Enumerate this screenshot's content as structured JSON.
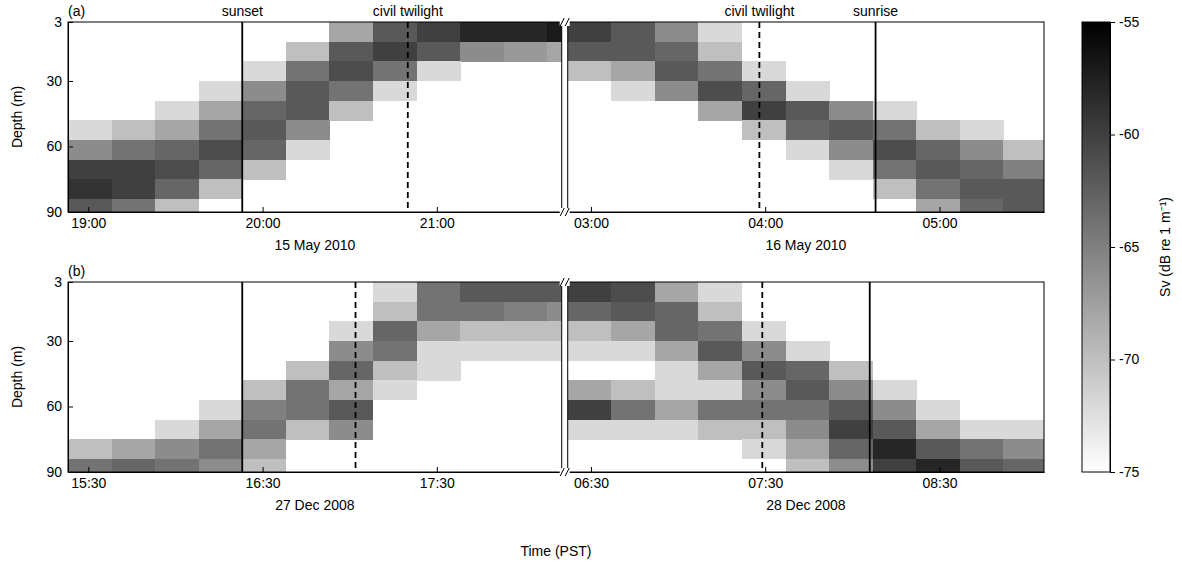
{
  "chart_data": {
    "type": "heatmap",
    "x_label": "Time (PST)",
    "y_label": "Depth (m)",
    "ylim": [
      3,
      90
    ],
    "yticks": [
      3,
      30,
      60,
      90
    ],
    "depth_edges": [
      3,
      12,
      21,
      30,
      39,
      48,
      57,
      66,
      75,
      84,
      90
    ],
    "colorbar": {
      "label": "Sv (dB re 1 m⁻¹)",
      "range": [
        -75,
        -55
      ],
      "ticks": [
        -55,
        -60,
        -65,
        -70,
        -75
      ],
      "colors": [
        "#ffffff",
        "#000000"
      ]
    },
    "panels": [
      {
        "letter": "(a)",
        "halves": [
          {
            "date": "15 May 2010",
            "xlim": [
              1133,
              1303
            ],
            "xticks": [
              {
                "value": 1140,
                "label": "19:00"
              },
              {
                "value": 1200,
                "label": "20:00"
              },
              {
                "value": 1260,
                "label": "21:00"
              }
            ],
            "time_edges": [
              1133,
              1148,
              1163,
              1178,
              1193,
              1208,
              1223,
              1238,
              1253,
              1268,
              1283,
              1298,
              1303
            ],
            "cells": [
              [
                null,
                null,
                null,
                null,
                null,
                null,
                -68,
                -62,
                -60,
                -58,
                -58,
                -57
              ],
              [
                null,
                null,
                null,
                null,
                null,
                -70,
                -62,
                -60,
                -62,
                -66,
                -67,
                -68
              ],
              [
                null,
                null,
                null,
                null,
                -72,
                -64,
                -61,
                -64,
                -72,
                null,
                null,
                null
              ],
              [
                null,
                null,
                null,
                -72,
                -66,
                -62,
                -64,
                -72,
                null,
                null,
                null,
                null
              ],
              [
                null,
                null,
                -72,
                -68,
                -63,
                -62,
                -70,
                null,
                null,
                null,
                null,
                null
              ],
              [
                -72,
                -70,
                -68,
                -64,
                -62,
                -66,
                null,
                null,
                null,
                null,
                null,
                null
              ],
              [
                -66,
                -64,
                -63,
                -61,
                -63,
                -72,
                null,
                null,
                null,
                null,
                null,
                null
              ],
              [
                -60,
                -60,
                -61,
                -63,
                -70,
                null,
                null,
                null,
                null,
                null,
                null,
                null
              ],
              [
                -59,
                -60,
                -63,
                -70,
                null,
                null,
                null,
                null,
                null,
                null,
                null,
                null
              ],
              [
                -62,
                -64,
                -70,
                null,
                null,
                null,
                null,
                null,
                null,
                null,
                null,
                null
              ]
            ],
            "events": [
              {
                "time": 1193,
                "label": "sunset",
                "line_style": "solid"
              },
              {
                "time": 1250,
                "label": "civil twilight",
                "line_style": "dashed"
              }
            ]
          },
          {
            "date": "16 May 2010",
            "xlim": [
              172,
              336
            ],
            "xticks": [
              {
                "value": 180,
                "label": "03:00"
              },
              {
                "value": 240,
                "label": "04:00"
              },
              {
                "value": 300,
                "label": "05:00"
              }
            ],
            "time_edges": [
              172,
              187,
              202,
              217,
              232,
              247,
              262,
              277,
              292,
              307,
              322,
              336
            ],
            "cells": [
              [
                -60,
                -62,
                -66,
                -72,
                null,
                null,
                null,
                null,
                null,
                null,
                null
              ],
              [
                -62,
                -62,
                -63,
                -70,
                null,
                null,
                null,
                null,
                null,
                null,
                null
              ],
              [
                -70,
                -68,
                -62,
                -64,
                -72,
                null,
                null,
                null,
                null,
                null,
                null
              ],
              [
                null,
                -72,
                -66,
                -61,
                -63,
                -72,
                null,
                null,
                null,
                null,
                null
              ],
              [
                null,
                null,
                null,
                -68,
                -60,
                -62,
                -66,
                -72,
                null,
                null,
                null
              ],
              [
                null,
                null,
                null,
                null,
                -70,
                -63,
                -62,
                -64,
                -70,
                -72,
                null
              ],
              [
                null,
                null,
                null,
                null,
                null,
                -72,
                -66,
                -61,
                -63,
                -66,
                -70
              ],
              [
                null,
                null,
                null,
                null,
                null,
                null,
                -72,
                -64,
                -62,
                -63,
                -65
              ],
              [
                null,
                null,
                null,
                null,
                null,
                null,
                null,
                -70,
                -64,
                -62,
                -62
              ],
              [
                null,
                null,
                null,
                null,
                null,
                null,
                null,
                null,
                -68,
                -63,
                -62
              ]
            ],
            "events": [
              {
                "time": 238,
                "label": "civil twilight",
                "line_style": "dashed"
              },
              {
                "time": 278,
                "label": "sunrise",
                "line_style": "solid"
              }
            ]
          }
        ]
      },
      {
        "letter": "(b)",
        "halves": [
          {
            "date": "27 Dec 2008",
            "xlim": [
              923,
              1093
            ],
            "xticks": [
              {
                "value": 930,
                "label": "15:30"
              },
              {
                "value": 990,
                "label": "16:30"
              },
              {
                "value": 1050,
                "label": "17:30"
              }
            ],
            "time_edges": [
              923,
              938,
              953,
              968,
              983,
              998,
              1013,
              1028,
              1043,
              1058,
              1073,
              1088,
              1093
            ],
            "cells": [
              [
                null,
                null,
                null,
                null,
                null,
                null,
                null,
                -72,
                -64,
                -62,
                -62,
                -62
              ],
              [
                null,
                null,
                null,
                null,
                null,
                null,
                null,
                -70,
                -64,
                -64,
                -65,
                -66
              ],
              [
                null,
                null,
                null,
                null,
                null,
                null,
                -72,
                -63,
                -68,
                -70,
                -70,
                -70
              ],
              [
                null,
                null,
                null,
                null,
                null,
                null,
                -66,
                -64,
                -72,
                -72,
                -72,
                -72
              ],
              [
                null,
                null,
                null,
                null,
                null,
                -70,
                -63,
                -70,
                -72,
                null,
                null,
                null
              ],
              [
                null,
                null,
                null,
                null,
                -70,
                -64,
                -68,
                -72,
                null,
                null,
                null,
                null
              ],
              [
                null,
                null,
                null,
                -72,
                -65,
                -64,
                -62,
                null,
                null,
                null,
                null,
                null
              ],
              [
                null,
                null,
                -72,
                -68,
                -64,
                -70,
                -66,
                null,
                null,
                null,
                null,
                null
              ],
              [
                -70,
                -68,
                -66,
                -64,
                -68,
                null,
                null,
                null,
                null,
                null,
                null,
                null
              ],
              [
                -64,
                -63,
                -64,
                -66,
                -70,
                null,
                null,
                null,
                null,
                null,
                null,
                null
              ]
            ],
            "events": [
              {
                "time": 983,
                "line_style": "solid"
              },
              {
                "time": 1022,
                "line_style": "dashed"
              }
            ]
          },
          {
            "date": "28 Dec 2008",
            "xlim": [
              382,
              546
            ],
            "xticks": [
              {
                "value": 390,
                "label": "06:30"
              },
              {
                "value": 450,
                "label": "07:30"
              },
              {
                "value": 510,
                "label": "08:30"
              }
            ],
            "time_edges": [
              382,
              397,
              412,
              427,
              442,
              457,
              472,
              487,
              502,
              517,
              532,
              546
            ],
            "cells": [
              [
                -60,
                -61,
                -68,
                -72,
                null,
                null,
                null,
                null,
                null,
                null,
                null
              ],
              [
                -63,
                -62,
                -63,
                -70,
                null,
                null,
                null,
                null,
                null,
                null,
                null
              ],
              [
                -70,
                -68,
                -63,
                -64,
                -72,
                null,
                null,
                null,
                null,
                null,
                null
              ],
              [
                -72,
                -72,
                -68,
                -62,
                -66,
                -72,
                null,
                null,
                null,
                null,
                null
              ],
              [
                null,
                null,
                -72,
                -68,
                -62,
                -63,
                -70,
                null,
                null,
                null,
                null
              ],
              [
                -68,
                -70,
                -72,
                -72,
                -66,
                -62,
                -66,
                -72,
                null,
                null,
                null
              ],
              [
                -60,
                -64,
                -68,
                -64,
                -64,
                -64,
                -62,
                -66,
                -72,
                null,
                null
              ],
              [
                -72,
                -72,
                -72,
                -70,
                -70,
                -66,
                -60,
                -62,
                -68,
                -72,
                -72
              ],
              [
                null,
                null,
                null,
                null,
                -72,
                -68,
                -63,
                -58,
                -62,
                -64,
                -66
              ],
              [
                null,
                null,
                null,
                null,
                null,
                -70,
                -66,
                -60,
                -58,
                -62,
                -63
              ]
            ],
            "events": [
              {
                "time": 449,
                "line_style": "dashed"
              },
              {
                "time": 486,
                "line_style": "solid"
              }
            ]
          }
        ]
      }
    ]
  }
}
